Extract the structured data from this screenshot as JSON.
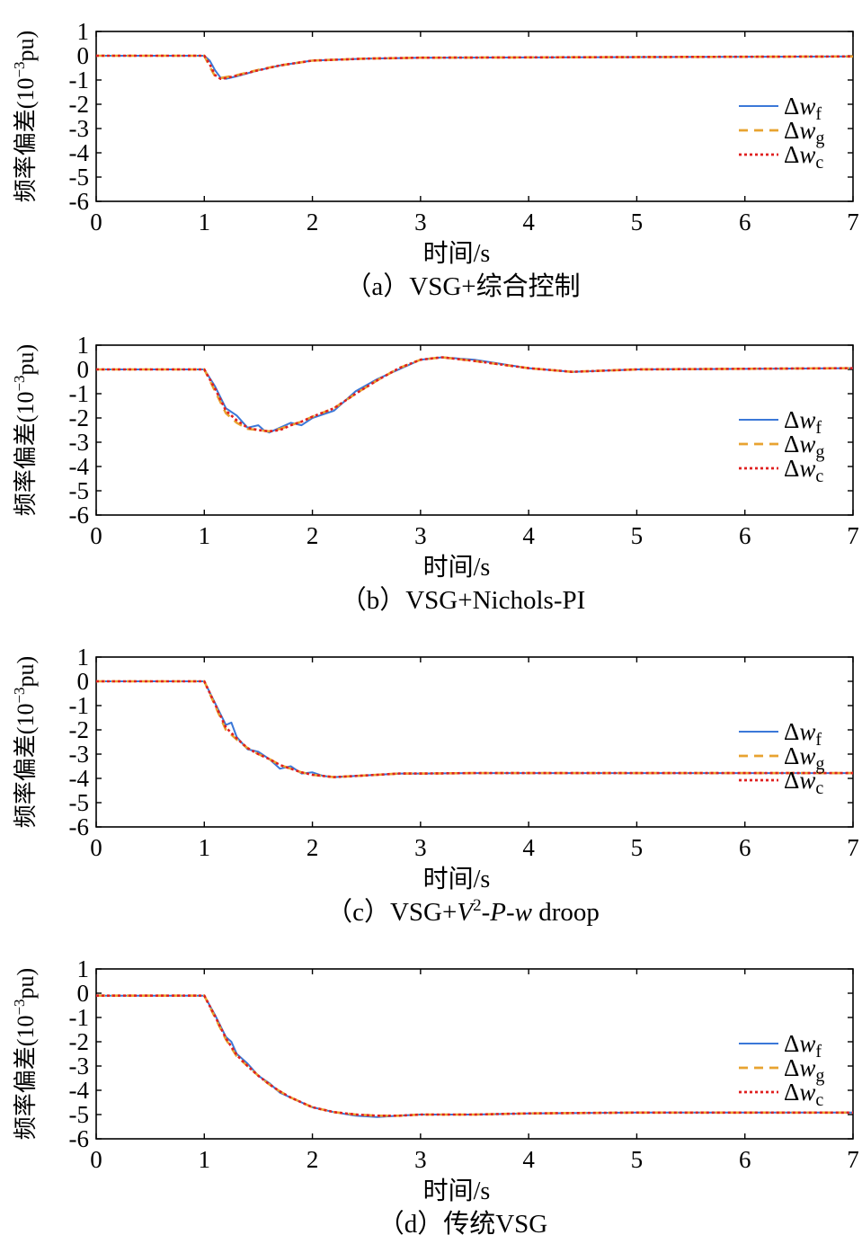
{
  "chart_data": [
    {
      "type": "line",
      "caption": "（a）VSG+综合控制",
      "xlabel": "时间/s",
      "ylabel": "频率偏差(10⁻³pu)",
      "xlim": [
        0,
        7
      ],
      "ylim": [
        -6,
        1
      ],
      "xticks": [
        0,
        1,
        2,
        3,
        4,
        5,
        6,
        7
      ],
      "yticks": [
        1,
        0,
        -1,
        -2,
        -3,
        -4,
        -5,
        -6
      ],
      "legend_position": "right",
      "series": [
        {
          "name": "Δw_f",
          "color": "#3b78d8",
          "dash": "solid",
          "x": [
            0,
            1.0,
            1.05,
            1.1,
            1.15,
            1.2,
            1.3,
            1.5,
            1.7,
            2.0,
            2.5,
            3.0,
            7.0
          ],
          "y": [
            0,
            0,
            -0.2,
            -0.6,
            -0.9,
            -0.95,
            -0.85,
            -0.6,
            -0.4,
            -0.2,
            -0.12,
            -0.08,
            -0.03
          ]
        },
        {
          "name": "Δw_g",
          "color": "#e8a330",
          "dash": "dashed",
          "x": [
            0,
            1.0,
            1.05,
            1.1,
            1.15,
            1.2,
            1.3,
            1.5,
            1.7,
            2.0,
            2.5,
            3.0,
            7.0
          ],
          "y": [
            0,
            0,
            -0.45,
            -0.85,
            -0.92,
            -0.88,
            -0.8,
            -0.58,
            -0.4,
            -0.2,
            -0.12,
            -0.08,
            -0.03
          ]
        },
        {
          "name": "Δw_c",
          "color": "#e02020",
          "dash": "dotted",
          "x": [
            0,
            1.0,
            1.05,
            1.1,
            1.15,
            1.2,
            1.3,
            1.5,
            1.7,
            2.0,
            2.5,
            3.0,
            7.0
          ],
          "y": [
            0,
            0,
            -0.35,
            -0.8,
            -0.95,
            -0.92,
            -0.82,
            -0.6,
            -0.4,
            -0.2,
            -0.12,
            -0.08,
            -0.03
          ]
        }
      ]
    },
    {
      "type": "line",
      "caption": "（b）VSG+Nichols-PI",
      "xlabel": "时间/s",
      "ylabel": "频率偏差(10⁻³pu)",
      "xlim": [
        0,
        7
      ],
      "ylim": [
        -6,
        1
      ],
      "xticks": [
        0,
        1,
        2,
        3,
        4,
        5,
        6,
        7
      ],
      "yticks": [
        1,
        0,
        -1,
        -2,
        -3,
        -4,
        -5,
        -6
      ],
      "legend_position": "right",
      "series": [
        {
          "name": "Δw_f",
          "color": "#3b78d8",
          "dash": "solid",
          "x": [
            0,
            1.0,
            1.1,
            1.2,
            1.3,
            1.4,
            1.5,
            1.55,
            1.6,
            1.7,
            1.8,
            1.9,
            2.0,
            2.2,
            2.4,
            2.6,
            2.8,
            3.0,
            3.2,
            3.5,
            4.0,
            4.4,
            5.0,
            7.0
          ],
          "y": [
            0,
            0,
            -0.7,
            -1.6,
            -1.9,
            -2.4,
            -2.3,
            -2.5,
            -2.6,
            -2.4,
            -2.2,
            -2.3,
            -2.0,
            -1.7,
            -0.9,
            -0.4,
            0.0,
            0.4,
            0.5,
            0.4,
            0.05,
            -0.1,
            0.0,
            0.05
          ]
        },
        {
          "name": "Δw_g",
          "color": "#e8a330",
          "dash": "dashed",
          "x": [
            0,
            1.0,
            1.1,
            1.2,
            1.3,
            1.4,
            1.5,
            1.6,
            1.7,
            1.8,
            1.9,
            2.0,
            2.2,
            2.4,
            2.6,
            2.8,
            3.0,
            3.2,
            3.5,
            4.0,
            4.4,
            5.0,
            7.0
          ],
          "y": [
            0,
            0,
            -0.9,
            -1.8,
            -2.2,
            -2.45,
            -2.5,
            -2.55,
            -2.45,
            -2.3,
            -2.15,
            -1.95,
            -1.6,
            -1.0,
            -0.45,
            0.05,
            0.4,
            0.5,
            0.35,
            0.05,
            -0.1,
            0.0,
            0.05
          ]
        },
        {
          "name": "Δw_c",
          "color": "#e02020",
          "dash": "dotted",
          "x": [
            0,
            1.0,
            1.1,
            1.2,
            1.3,
            1.4,
            1.5,
            1.6,
            1.7,
            1.8,
            1.9,
            2.0,
            2.2,
            2.4,
            2.6,
            2.8,
            3.0,
            3.2,
            3.5,
            4.0,
            4.4,
            5.0,
            7.0
          ],
          "y": [
            0,
            0,
            -0.8,
            -1.7,
            -2.1,
            -2.4,
            -2.5,
            -2.55,
            -2.5,
            -2.3,
            -2.15,
            -1.95,
            -1.6,
            -1.0,
            -0.45,
            0.05,
            0.4,
            0.5,
            0.35,
            0.05,
            -0.1,
            0.0,
            0.05
          ]
        }
      ]
    },
    {
      "type": "line",
      "caption": "（c）VSG+V²-P-w droop",
      "caption_parts": {
        "prefix": "（c）VSG+",
        "v": "V",
        "sup": "2",
        "mid1": "-",
        "p": "P",
        "mid2": "-",
        "w": "w",
        "suffix": " droop"
      },
      "xlabel": "时间/s",
      "ylabel": "频率偏差(10⁻³pu)",
      "xlim": [
        0,
        7
      ],
      "ylim": [
        -6,
        1
      ],
      "xticks": [
        0,
        1,
        2,
        3,
        4,
        5,
        6,
        7
      ],
      "yticks": [
        1,
        0,
        -1,
        -2,
        -3,
        -4,
        -5,
        -6
      ],
      "legend_position": "right",
      "series": [
        {
          "name": "Δw_f",
          "color": "#3b78d8",
          "dash": "solid",
          "x": [
            0,
            1.0,
            1.1,
            1.2,
            1.25,
            1.3,
            1.4,
            1.5,
            1.6,
            1.7,
            1.8,
            1.9,
            2.0,
            2.1,
            2.2,
            2.4,
            2.6,
            2.8,
            3.0,
            3.5,
            4.0,
            7.0
          ],
          "y": [
            0,
            0,
            -0.9,
            -1.8,
            -1.7,
            -2.3,
            -2.8,
            -2.9,
            -3.2,
            -3.6,
            -3.5,
            -3.8,
            -3.75,
            -3.9,
            -3.95,
            -3.9,
            -3.85,
            -3.8,
            -3.8,
            -3.78,
            -3.78,
            -3.78
          ]
        },
        {
          "name": "Δw_g",
          "color": "#e8a330",
          "dash": "dashed",
          "x": [
            0,
            1.0,
            1.1,
            1.2,
            1.3,
            1.4,
            1.5,
            1.6,
            1.7,
            1.8,
            1.9,
            2.0,
            2.2,
            2.4,
            2.6,
            2.8,
            3.0,
            3.5,
            4.0,
            7.0
          ],
          "y": [
            0,
            0,
            -1.0,
            -2.0,
            -2.4,
            -2.75,
            -3.0,
            -3.2,
            -3.45,
            -3.6,
            -3.75,
            -3.85,
            -3.95,
            -3.9,
            -3.85,
            -3.8,
            -3.8,
            -3.78,
            -3.78,
            -3.78
          ]
        },
        {
          "name": "Δw_c",
          "color": "#e02020",
          "dash": "dotted",
          "x": [
            0,
            1.0,
            1.1,
            1.2,
            1.3,
            1.4,
            1.5,
            1.6,
            1.7,
            1.8,
            1.9,
            2.0,
            2.2,
            2.4,
            2.6,
            2.8,
            3.0,
            3.5,
            4.0,
            7.0
          ],
          "y": [
            0,
            0,
            -0.95,
            -1.9,
            -2.35,
            -2.75,
            -3.0,
            -3.2,
            -3.45,
            -3.6,
            -3.75,
            -3.85,
            -3.95,
            -3.9,
            -3.85,
            -3.8,
            -3.8,
            -3.78,
            -3.78,
            -3.78
          ]
        }
      ]
    },
    {
      "type": "line",
      "caption": "（d）传统VSG",
      "xlabel": "时间/s",
      "ylabel": "频率偏差(10⁻³pu)",
      "xlim": [
        0,
        7
      ],
      "ylim": [
        -6,
        1
      ],
      "xticks": [
        0,
        1,
        2,
        3,
        4,
        5,
        6,
        7
      ],
      "yticks": [
        1,
        0,
        -1,
        -2,
        -3,
        -4,
        -5,
        -6
      ],
      "legend_position": "right",
      "series": [
        {
          "name": "Δw_f",
          "color": "#3b78d8",
          "dash": "solid",
          "x": [
            0,
            1.0,
            1.1,
            1.2,
            1.25,
            1.3,
            1.4,
            1.5,
            1.6,
            1.7,
            1.8,
            1.9,
            2.0,
            2.2,
            2.4,
            2.6,
            2.8,
            3.0,
            3.5,
            4.0,
            5.0,
            7.0
          ],
          "y": [
            -0.1,
            -0.1,
            -0.9,
            -1.8,
            -2.0,
            -2.5,
            -2.9,
            -3.4,
            -3.7,
            -4.1,
            -4.3,
            -4.5,
            -4.7,
            -4.9,
            -5.05,
            -5.1,
            -5.05,
            -5.0,
            -5.0,
            -4.95,
            -4.92,
            -4.92
          ]
        },
        {
          "name": "Δw_g",
          "color": "#e8a330",
          "dash": "dashed",
          "x": [
            0,
            1.0,
            1.1,
            1.2,
            1.3,
            1.4,
            1.5,
            1.6,
            1.7,
            1.8,
            1.9,
            2.0,
            2.2,
            2.4,
            2.6,
            2.8,
            3.0,
            3.5,
            4.0,
            5.0,
            7.0
          ],
          "y": [
            -0.1,
            -0.1,
            -1.0,
            -1.9,
            -2.6,
            -3.0,
            -3.4,
            -3.75,
            -4.05,
            -4.3,
            -4.5,
            -4.7,
            -4.9,
            -5.0,
            -5.05,
            -5.05,
            -5.0,
            -5.0,
            -4.95,
            -4.92,
            -4.92
          ]
        },
        {
          "name": "Δw_c",
          "color": "#e02020",
          "dash": "dotted",
          "x": [
            0,
            1.0,
            1.1,
            1.2,
            1.3,
            1.4,
            1.5,
            1.6,
            1.7,
            1.8,
            1.9,
            2.0,
            2.2,
            2.4,
            2.6,
            2.8,
            3.0,
            3.5,
            4.0,
            5.0,
            7.0
          ],
          "y": [
            -0.1,
            -0.1,
            -0.95,
            -1.85,
            -2.55,
            -3.0,
            -3.4,
            -3.75,
            -4.05,
            -4.3,
            -4.5,
            -4.7,
            -4.9,
            -5.0,
            -5.05,
            -5.05,
            -5.0,
            -5.0,
            -4.95,
            -4.92,
            -4.92
          ]
        }
      ]
    }
  ],
  "legend_labels": {
    "f": {
      "delta": "Δ",
      "var": "w",
      "sub": "f"
    },
    "g": {
      "delta": "Δ",
      "var": "w",
      "sub": "g"
    },
    "c": {
      "delta": "Δ",
      "var": "w",
      "sub": "c"
    }
  },
  "ylabel_parts": {
    "prefix": "频率偏差(10",
    "sup": "−3",
    "suffix": "pu)"
  }
}
